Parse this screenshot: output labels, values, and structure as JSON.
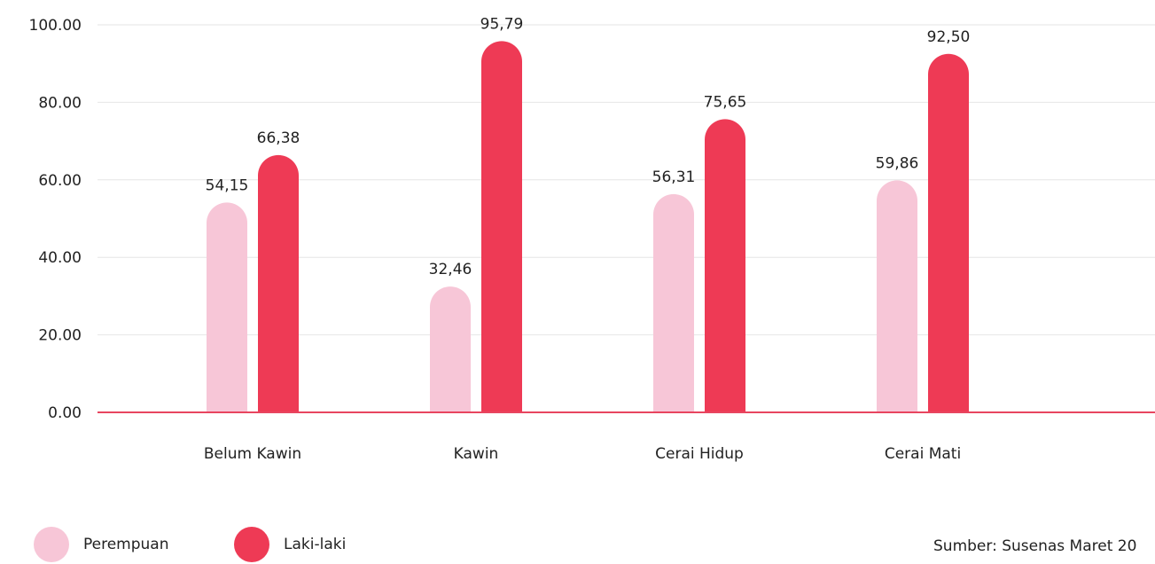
{
  "chart_data": {
    "type": "bar",
    "categories": [
      "Belum Kawin",
      "Kawin",
      "Cerai Hidup",
      "Cerai Mati"
    ],
    "series": [
      {
        "name": "Perempuan",
        "values": [
          54.15,
          32.46,
          56.31,
          59.86
        ],
        "labels": [
          "54,15",
          "32,46",
          "56,31",
          "59,86"
        ],
        "color": "#f7c6d7"
      },
      {
        "name": "Laki-laki",
        "values": [
          66.38,
          95.79,
          75.65,
          92.5
        ],
        "labels": [
          "66,38",
          "95,79",
          "75,65",
          "92,50"
        ],
        "color": "#ee3a55"
      }
    ],
    "ylim": [
      0,
      100
    ],
    "yticks": [
      0,
      20,
      40,
      60,
      80,
      100
    ],
    "ytick_labels": [
      "0.00",
      "20.00",
      "40.00",
      "60.00",
      "80.00",
      "100.00"
    ],
    "grid": true,
    "legend": "bottom-left",
    "axis_color": "#e8455f",
    "grid_color": "#e6e6e6"
  },
  "source": "Sumber: Susenas Maret 20"
}
